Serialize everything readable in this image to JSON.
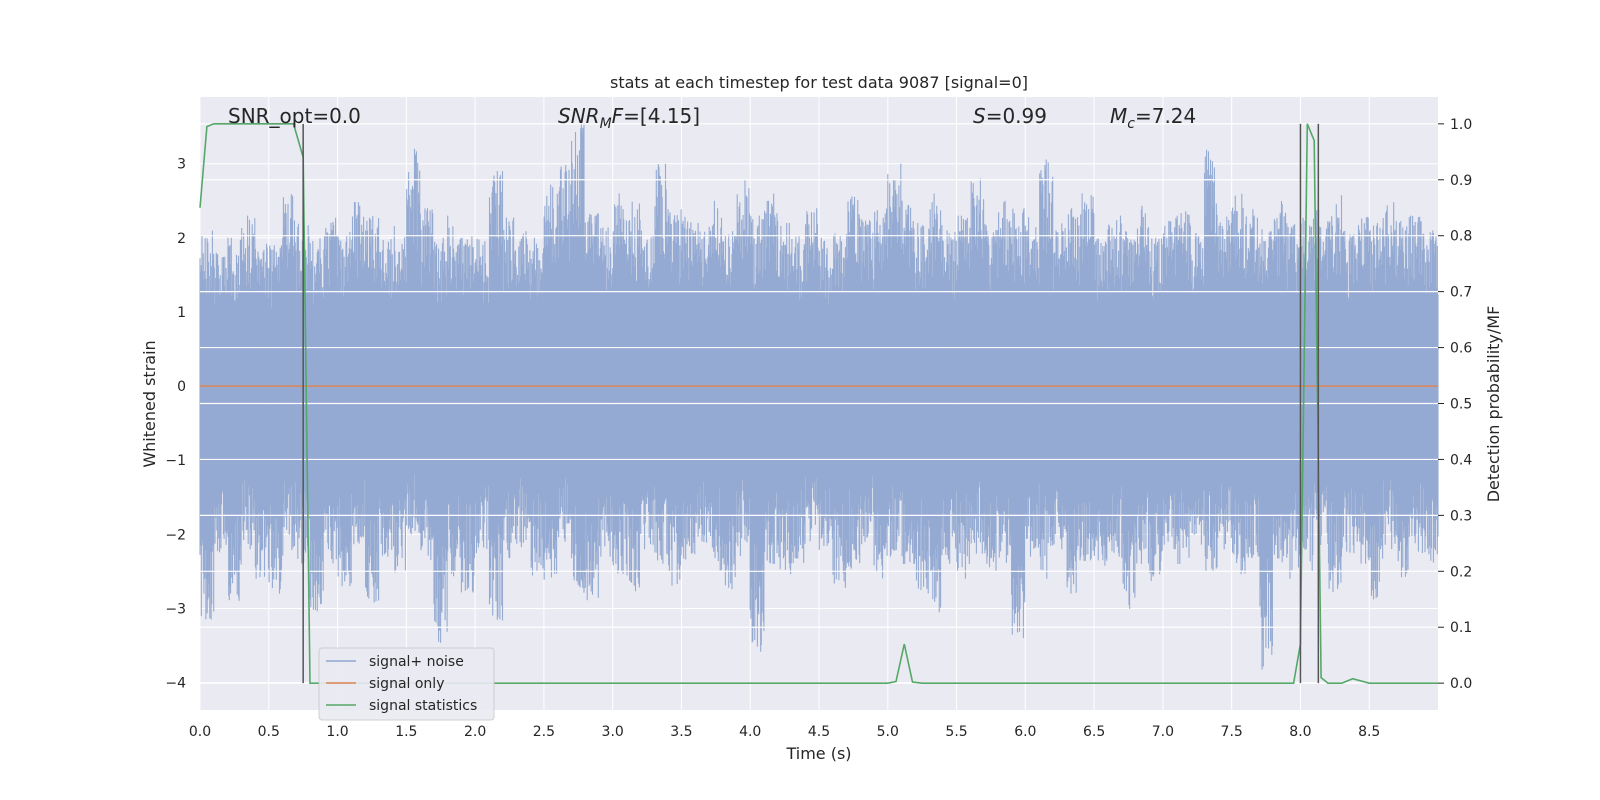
{
  "chart_data": {
    "type": "line",
    "title": "stats at each timestep for test data 9087 [signal=0]",
    "xlabel": "Time (s)",
    "ylabel": "Whitened strain",
    "y2label": "Detection probability/MF",
    "xlim": [
      0.0,
      9.0
    ],
    "ylim": [
      -4.37,
      3.9
    ],
    "y2lim": [
      -0.048,
      1.048
    ],
    "x_ticks": [
      "0.0",
      "0.5",
      "1.0",
      "1.5",
      "2.0",
      "2.5",
      "3.0",
      "3.5",
      "4.0",
      "4.5",
      "5.0",
      "5.5",
      "6.0",
      "6.5",
      "7.0",
      "7.5",
      "8.0",
      "8.5"
    ],
    "x_tick_values": [
      0.0,
      0.5,
      1.0,
      1.5,
      2.0,
      2.5,
      3.0,
      3.5,
      4.0,
      4.5,
      5.0,
      5.5,
      6.0,
      6.5,
      7.0,
      7.5,
      8.0,
      8.5
    ],
    "y_ticks": [
      "−4",
      "−3",
      "−2",
      "−1",
      "0",
      "1",
      "2",
      "3"
    ],
    "y_tick_values": [
      -4,
      -3,
      -2,
      -1,
      0,
      1,
      2,
      3
    ],
    "y2_ticks": [
      "0.0",
      "0.1",
      "0.2",
      "0.3",
      "0.4",
      "0.5",
      "0.6",
      "0.7",
      "0.8",
      "0.9",
      "1.0"
    ],
    "y2_tick_values": [
      0.0,
      0.1,
      0.2,
      0.3,
      0.4,
      0.5,
      0.6,
      0.7,
      0.8,
      0.9,
      1.0
    ],
    "grid": true,
    "legend_position": "lower-left",
    "annotations": {
      "snr_opt": "SNR_opt=0.0",
      "snr_mf": "=[4.15]",
      "snr_mf_symbol": "SNR",
      "snr_mf_sub": "M",
      "snr_mf_tail": "F",
      "s_symbol": "S",
      "s_value": "=0.99",
      "mc_symbol": "M",
      "mc_sub": "c",
      "mc_value": "=7.24"
    },
    "vertical_markers_x": [
      0.75,
      8.0,
      8.13
    ],
    "series": [
      {
        "name": "signal+ noise",
        "axis": "left",
        "color": "#8fa6d0",
        "kind": "noise",
        "envelope_top": [
          2.1,
          1.8,
          2.0,
          2.3,
          2.0,
          1.9,
          2.6,
          2.2,
          2.0,
          2.4,
          2.1,
          2.5,
          2.3,
          2.0,
          2.2,
          3.2,
          2.4,
          2.0,
          2.3,
          2.1,
          2.0,
          2.9,
          2.3,
          2.1,
          2.0,
          2.8,
          3.0,
          3.6,
          2.4,
          2.2,
          2.6,
          2.5,
          2.1,
          3.0,
          2.4,
          2.3,
          2.2,
          2.5,
          2.1,
          2.8,
          2.3,
          2.6,
          2.2,
          2.1,
          2.4,
          2.0,
          2.2,
          2.6,
          2.3,
          2.4,
          3.0,
          2.5,
          2.2,
          2.6,
          2.1,
          2.3,
          2.8,
          2.2,
          2.5,
          2.4,
          2.3,
          3.1,
          2.2,
          2.4,
          2.6,
          2.1,
          2.3,
          2.2,
          2.5,
          2.0,
          2.3,
          2.4,
          2.1,
          3.2,
          2.3,
          2.6,
          2.4,
          2.2,
          2.5,
          2.2,
          2.3,
          2.4,
          2.6,
          2.1,
          2.3,
          2.2,
          2.5,
          2.4,
          2.3,
          2.1
        ],
        "envelope_bottom": [
          -3.2,
          -2.4,
          -2.9,
          -2.2,
          -2.6,
          -2.8,
          -2.3,
          -2.5,
          -3.1,
          -2.4,
          -2.7,
          -2.2,
          -3.0,
          -2.3,
          -2.6,
          -2.0,
          -2.4,
          -3.5,
          -2.6,
          -2.8,
          -2.3,
          -3.2,
          -2.4,
          -2.2,
          -2.6,
          -2.7,
          -2.1,
          -2.8,
          -2.9,
          -2.3,
          -2.6,
          -2.8,
          -2.2,
          -2.4,
          -2.7,
          -2.4,
          -2.2,
          -2.5,
          -2.8,
          -2.3,
          -3.6,
          -2.4,
          -2.6,
          -2.4,
          -2.1,
          -2.3,
          -2.8,
          -2.5,
          -2.2,
          -2.6,
          -2.3,
          -2.4,
          -2.8,
          -3.1,
          -2.4,
          -2.6,
          -2.3,
          -2.5,
          -2.4,
          -3.4,
          -2.3,
          -2.6,
          -2.2,
          -2.8,
          -2.4,
          -2.5,
          -2.3,
          -3.1,
          -2.4,
          -2.7,
          -2.2,
          -2.4,
          -2.3,
          -2.5,
          -2.2,
          -2.6,
          -2.4,
          -4.0,
          -2.4,
          -2.6,
          -2.5,
          -2.2,
          -2.8,
          -2.3,
          -2.4,
          -2.9,
          -2.2,
          -2.6,
          -2.3,
          -2.4
        ]
      },
      {
        "name": "signal only",
        "axis": "left",
        "color": "#dd8452",
        "x": [
          0.0,
          9.0
        ],
        "y": [
          0.0,
          0.0
        ]
      },
      {
        "name": "signal statistics",
        "axis": "right",
        "color": "#55a868",
        "x": [
          0.0,
          0.05,
          0.1,
          0.2,
          0.3,
          0.4,
          0.5,
          0.6,
          0.68,
          0.75,
          0.8,
          0.85,
          1.0,
          2.0,
          3.0,
          4.0,
          5.0,
          5.06,
          5.12,
          5.18,
          5.25,
          6.0,
          7.0,
          7.95,
          8.0,
          8.05,
          8.1,
          8.15,
          8.2,
          8.25,
          8.3,
          8.38,
          8.5,
          9.0
        ],
        "y": [
          0.85,
          0.995,
          1.0,
          1.0,
          1.0,
          1.0,
          1.0,
          1.0,
          1.0,
          0.94,
          0.0,
          0.0,
          0.0,
          0.0,
          0.0,
          0.0,
          0.0,
          0.003,
          0.07,
          0.002,
          0.0,
          0.0,
          0.0,
          0.0,
          0.07,
          1.0,
          0.97,
          0.01,
          0.0,
          0.0,
          0.0,
          0.008,
          0.0,
          0.0
        ]
      }
    ]
  }
}
